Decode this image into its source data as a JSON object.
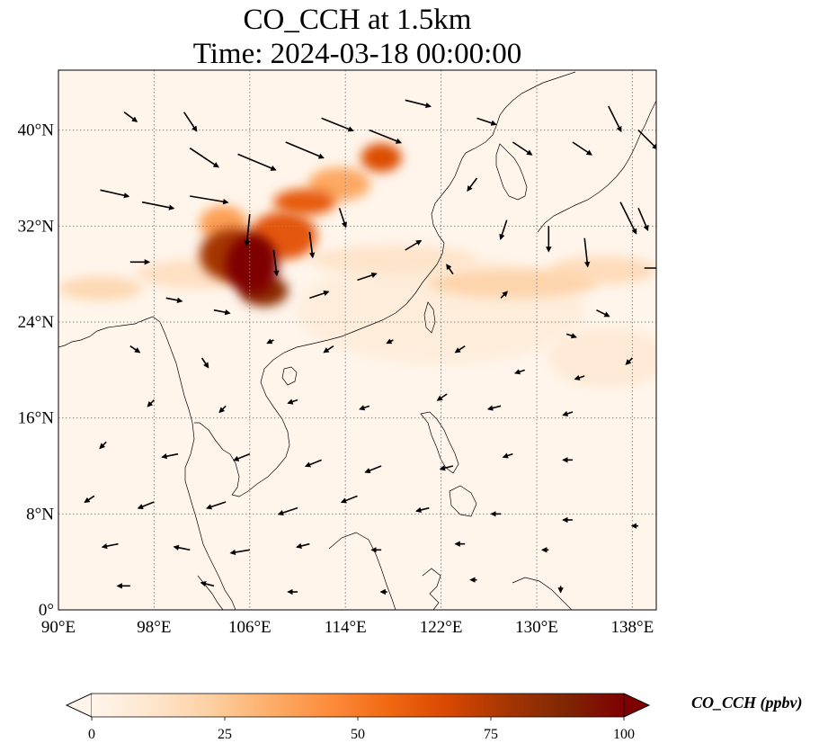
{
  "title_line1": "CO_CCH at 1.5km",
  "title_line2": "Time: 2024-03-18 00:00:00",
  "map": {
    "extent": {
      "lon_min": 90,
      "lon_max": 140,
      "lat_min": 0,
      "lat_max": 45
    },
    "lon_ticks": [
      {
        "value": 90,
        "label": "90°E"
      },
      {
        "value": 98,
        "label": "98°E"
      },
      {
        "value": 106,
        "label": "106°E"
      },
      {
        "value": 114,
        "label": "114°E"
      },
      {
        "value": 122,
        "label": "122°E"
      },
      {
        "value": 130,
        "label": "130°E"
      },
      {
        "value": 138,
        "label": "138°E"
      }
    ],
    "lat_ticks": [
      {
        "value": 0,
        "label": "0°"
      },
      {
        "value": 8,
        "label": "8°N"
      },
      {
        "value": 16,
        "label": "16°N"
      },
      {
        "value": 24,
        "label": "24°N"
      },
      {
        "value": 32,
        "label": "32°N"
      },
      {
        "value": 40,
        "label": "40°N"
      }
    ],
    "gridlines": true,
    "gridline_style": "dotted",
    "colormap": [
      "#fff5eb",
      "#fdd0a2",
      "#fd8d3c",
      "#d94801",
      "#8c0d04",
      "#7f0000"
    ],
    "plumes": [
      {
        "lon": 106.2,
        "lat": 28.8,
        "rlon": 2.2,
        "rlat": 2.5,
        "value": 100
      },
      {
        "lon": 104.6,
        "lat": 29.6,
        "rlon": 2.8,
        "rlat": 2.2,
        "value": 78
      },
      {
        "lon": 107.2,
        "lat": 26.6,
        "rlon": 2.0,
        "rlat": 1.3,
        "value": 85
      },
      {
        "lon": 108.8,
        "lat": 31.2,
        "rlon": 2.8,
        "rlat": 2.0,
        "value": 62
      },
      {
        "lon": 110.6,
        "lat": 34.0,
        "rlon": 2.6,
        "rlat": 1.1,
        "value": 60
      },
      {
        "lon": 113.5,
        "lat": 35.5,
        "rlon": 2.6,
        "rlat": 1.4,
        "value": 35
      },
      {
        "lon": 117.0,
        "lat": 37.7,
        "rlon": 1.7,
        "rlat": 1.2,
        "value": 65
      },
      {
        "lon": 103.8,
        "lat": 32.2,
        "rlon": 2.0,
        "rlat": 1.5,
        "value": 38
      },
      {
        "lon": 101.5,
        "lat": 28.0,
        "rlon": 5.0,
        "rlat": 1.2,
        "value": 14
      },
      {
        "lon": 93.5,
        "lat": 26.8,
        "rlon": 3.5,
        "rlat": 1.0,
        "value": 18
      },
      {
        "lon": 118.0,
        "lat": 29.2,
        "rlon": 7.0,
        "rlat": 1.2,
        "value": 12
      },
      {
        "lon": 128.0,
        "lat": 27.2,
        "rlon": 7.0,
        "rlat": 1.2,
        "value": 20
      },
      {
        "lon": 135.5,
        "lat": 28.3,
        "rlon": 4.5,
        "rlat": 1.2,
        "value": 16
      },
      {
        "lon": 122.0,
        "lat": 25.0,
        "rlon": 12.0,
        "rlat": 4.5,
        "value": 6
      },
      {
        "lon": 136.0,
        "lat": 21.0,
        "rlon": 5.0,
        "rlat": 2.5,
        "value": 8
      }
    ],
    "wind_vectors": [
      {
        "lon": 93.5,
        "lat": 35.0,
        "u": 4.5,
        "v": -1.0
      },
      {
        "lon": 97.0,
        "lat": 34.0,
        "u": 5.0,
        "v": -1.0
      },
      {
        "lon": 101.0,
        "lat": 34.5,
        "u": 6.0,
        "v": -1.0
      },
      {
        "lon": 105.0,
        "lat": 38.0,
        "u": 6.0,
        "v": -2.5
      },
      {
        "lon": 109.0,
        "lat": 39.0,
        "u": 6.0,
        "v": -2.5
      },
      {
        "lon": 112.0,
        "lat": 41.0,
        "u": 5.0,
        "v": -2.0
      },
      {
        "lon": 116.0,
        "lat": 40.0,
        "u": 5.0,
        "v": -2.0
      },
      {
        "lon": 119.0,
        "lat": 42.5,
        "u": 4.0,
        "v": -1.0
      },
      {
        "lon": 101.0,
        "lat": 38.5,
        "u": 4.5,
        "v": -3.0
      },
      {
        "lon": 100.5,
        "lat": 41.5,
        "u": 2.0,
        "v": -3.0
      },
      {
        "lon": 95.5,
        "lat": 41.5,
        "u": 2.0,
        "v": -1.5
      },
      {
        "lon": 106.0,
        "lat": 33.0,
        "u": -0.5,
        "v": -5.0
      },
      {
        "lon": 108.0,
        "lat": 30.0,
        "u": 0.5,
        "v": -4.0
      },
      {
        "lon": 111.0,
        "lat": 31.5,
        "u": 0.5,
        "v": -4.0
      },
      {
        "lon": 113.5,
        "lat": 33.5,
        "u": 1.0,
        "v": -3.0
      },
      {
        "lon": 96.0,
        "lat": 29.0,
        "u": 3.0,
        "v": 0.0
      },
      {
        "lon": 99.0,
        "lat": 26.0,
        "u": 2.5,
        "v": -0.5
      },
      {
        "lon": 103.0,
        "lat": 25.0,
        "u": 2.5,
        "v": -0.5
      },
      {
        "lon": 111.0,
        "lat": 26.0,
        "u": 3.0,
        "v": 1.0
      },
      {
        "lon": 115.0,
        "lat": 27.5,
        "u": 3.0,
        "v": 1.0
      },
      {
        "lon": 119.0,
        "lat": 30.0,
        "u": 2.5,
        "v": 1.5
      },
      {
        "lon": 125.0,
        "lat": 41.0,
        "u": 3.0,
        "v": -1.0
      },
      {
        "lon": 128.0,
        "lat": 39.0,
        "u": 3.0,
        "v": -2.0
      },
      {
        "lon": 133.0,
        "lat": 39.0,
        "u": 3.0,
        "v": -2.0
      },
      {
        "lon": 136.0,
        "lat": 42.0,
        "u": 2.0,
        "v": -4.0
      },
      {
        "lon": 138.5,
        "lat": 40.0,
        "u": 3.0,
        "v": -3.0
      },
      {
        "lon": 137.0,
        "lat": 34.0,
        "u": 2.5,
        "v": -5.0
      },
      {
        "lon": 134.0,
        "lat": 31.0,
        "u": 0.5,
        "v": -4.5
      },
      {
        "lon": 131.0,
        "lat": 32.0,
        "u": 0.0,
        "v": -4.0
      },
      {
        "lon": 127.5,
        "lat": 32.5,
        "u": -1.0,
        "v": -3.0
      },
      {
        "lon": 125.0,
        "lat": 36.0,
        "u": -1.5,
        "v": -2.0
      },
      {
        "lon": 138.5,
        "lat": 33.5,
        "u": 1.5,
        "v": -3.5
      },
      {
        "lon": 139.0,
        "lat": 28.5,
        "u": 3.0,
        "v": 0.0
      },
      {
        "lon": 135.0,
        "lat": 25.0,
        "u": 2.0,
        "v": -1.0
      },
      {
        "lon": 132.5,
        "lat": 23.0,
        "u": 1.5,
        "v": -0.5
      },
      {
        "lon": 127.0,
        "lat": 26.0,
        "u": 1.0,
        "v": 1.0
      },
      {
        "lon": 123.0,
        "lat": 28.0,
        "u": -1.0,
        "v": 1.5
      },
      {
        "lon": 96.0,
        "lat": 22.0,
        "u": 1.5,
        "v": -1.0
      },
      {
        "lon": 102.0,
        "lat": 21.0,
        "u": 1.0,
        "v": -1.5
      },
      {
        "lon": 108.0,
        "lat": 22.5,
        "u": -1.0,
        "v": -0.5
      },
      {
        "lon": 113.0,
        "lat": 22.0,
        "u": -1.5,
        "v": -1.0
      },
      {
        "lon": 118.0,
        "lat": 22.5,
        "u": -1.0,
        "v": -0.5
      },
      {
        "lon": 124.0,
        "lat": 22.0,
        "u": -1.5,
        "v": -1.0
      },
      {
        "lon": 129.0,
        "lat": 20.0,
        "u": -1.5,
        "v": -0.5
      },
      {
        "lon": 134.0,
        "lat": 19.5,
        "u": -1.5,
        "v": -0.5
      },
      {
        "lon": 138.0,
        "lat": 21.0,
        "u": -1.0,
        "v": -1.0
      },
      {
        "lon": 98.0,
        "lat": 17.5,
        "u": -1.0,
        "v": -1.0
      },
      {
        "lon": 104.0,
        "lat": 17.0,
        "u": -1.0,
        "v": -1.0
      },
      {
        "lon": 110.0,
        "lat": 17.5,
        "u": -1.5,
        "v": -0.5
      },
      {
        "lon": 116.0,
        "lat": 17.0,
        "u": -1.5,
        "v": -0.5
      },
      {
        "lon": 122.5,
        "lat": 18.0,
        "u": -1.5,
        "v": -1.0
      },
      {
        "lon": 127.0,
        "lat": 17.0,
        "u": -2.0,
        "v": -0.5
      },
      {
        "lon": 133.0,
        "lat": 16.5,
        "u": -1.5,
        "v": -0.5
      },
      {
        "lon": 94.0,
        "lat": 14.0,
        "u": -1.0,
        "v": -1.0
      },
      {
        "lon": 100.0,
        "lat": 13.0,
        "u": -2.5,
        "v": -0.5
      },
      {
        "lon": 106.0,
        "lat": 13.0,
        "u": -2.5,
        "v": -1.0
      },
      {
        "lon": 112.0,
        "lat": 12.5,
        "u": -2.5,
        "v": -1.0
      },
      {
        "lon": 117.0,
        "lat": 12.0,
        "u": -2.5,
        "v": -1.0
      },
      {
        "lon": 123.0,
        "lat": 12.0,
        "u": -2.0,
        "v": -0.5
      },
      {
        "lon": 128.0,
        "lat": 13.0,
        "u": -1.5,
        "v": -0.5
      },
      {
        "lon": 133.0,
        "lat": 12.5,
        "u": -1.5,
        "v": 0.0
      },
      {
        "lon": 93.0,
        "lat": 9.5,
        "u": -1.5,
        "v": -1.0
      },
      {
        "lon": 98.0,
        "lat": 9.0,
        "u": -2.5,
        "v": -1.0
      },
      {
        "lon": 104.0,
        "lat": 9.0,
        "u": -3.0,
        "v": -1.0
      },
      {
        "lon": 110.0,
        "lat": 8.5,
        "u": -3.0,
        "v": -1.0
      },
      {
        "lon": 115.0,
        "lat": 9.5,
        "u": -2.5,
        "v": -1.0
      },
      {
        "lon": 121.0,
        "lat": 8.5,
        "u": -2.0,
        "v": -0.5
      },
      {
        "lon": 127.0,
        "lat": 8.0,
        "u": -1.5,
        "v": 0.0
      },
      {
        "lon": 133.0,
        "lat": 7.5,
        "u": -1.5,
        "v": 0.0
      },
      {
        "lon": 95.0,
        "lat": 5.5,
        "u": -2.5,
        "v": -0.5
      },
      {
        "lon": 101.0,
        "lat": 5.0,
        "u": -2.5,
        "v": 0.5
      },
      {
        "lon": 106.0,
        "lat": 5.0,
        "u": -3.0,
        "v": -0.5
      },
      {
        "lon": 111.0,
        "lat": 5.5,
        "u": -2.0,
        "v": -0.5
      },
      {
        "lon": 117.0,
        "lat": 5.0,
        "u": -1.5,
        "v": 0.0
      },
      {
        "lon": 124.0,
        "lat": 5.5,
        "u": -1.5,
        "v": 0.0
      },
      {
        "lon": 131.0,
        "lat": 5.0,
        "u": -1.0,
        "v": 0.0
      },
      {
        "lon": 96.0,
        "lat": 2.0,
        "u": -2.0,
        "v": 0.0
      },
      {
        "lon": 103.0,
        "lat": 2.0,
        "u": -2.0,
        "v": 0.5
      },
      {
        "lon": 110.0,
        "lat": 1.5,
        "u": -1.5,
        "v": 0.0
      },
      {
        "lon": 117.5,
        "lat": 1.5,
        "u": -1.0,
        "v": 0.0
      },
      {
        "lon": 125.0,
        "lat": 2.5,
        "u": -1.0,
        "v": 0.0
      },
      {
        "lon": 132.0,
        "lat": 2.0,
        "u": 0.0,
        "v": -1.0
      },
      {
        "lon": 138.5,
        "lat": 7.0,
        "u": -1.0,
        "v": 0.0
      }
    ]
  },
  "colorbar": {
    "label": "CO_CCH (ppbv)",
    "min": 0,
    "max": 100,
    "extend": "both",
    "ticks": [
      {
        "value": 0,
        "label": "0"
      },
      {
        "value": 25,
        "label": "25"
      },
      {
        "value": 50,
        "label": "50"
      },
      {
        "value": 75,
        "label": "75"
      },
      {
        "value": 100,
        "label": "100"
      }
    ],
    "colors": [
      "#fff5eb",
      "#fee6ce",
      "#fdd0a2",
      "#fdae6b",
      "#fd8d3c",
      "#f16913",
      "#d94801",
      "#a63603",
      "#7f2704",
      "#7f0000"
    ]
  }
}
